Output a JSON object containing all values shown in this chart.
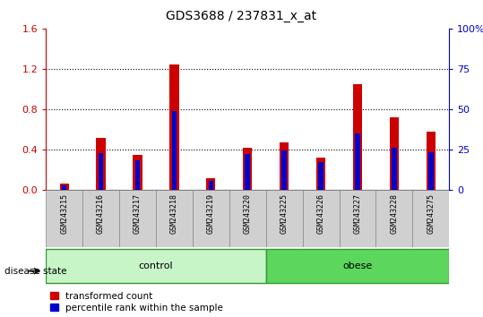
{
  "title": "GDS3688 / 237831_x_at",
  "samples": [
    "GSM243215",
    "GSM243216",
    "GSM243217",
    "GSM243218",
    "GSM243219",
    "GSM243220",
    "GSM243225",
    "GSM243226",
    "GSM243227",
    "GSM243228",
    "GSM243275"
  ],
  "transformed_count": [
    0.07,
    0.52,
    0.35,
    1.24,
    0.12,
    0.42,
    0.47,
    0.32,
    1.05,
    0.72,
    0.58
  ],
  "percentile_rank_scaled": [
    0.048,
    0.37,
    0.3,
    0.78,
    0.09,
    0.36,
    0.39,
    0.28,
    0.56,
    0.42,
    0.38
  ],
  "red_color": "#cc0000",
  "blue_color": "#0000cc",
  "bar_width": 0.25,
  "ylim_left": [
    0,
    1.6
  ],
  "ylim_right": [
    0,
    100
  ],
  "yticks_left": [
    0,
    0.4,
    0.8,
    1.2,
    1.6
  ],
  "yticks_right": [
    0,
    25,
    50,
    75,
    100
  ],
  "control_color": "#c8f5c8",
  "obese_color": "#5cd65c",
  "group_edge_color": "#339933",
  "disease_state_label": "disease state",
  "legend_labels": [
    "transformed count",
    "percentile rank within the sample"
  ],
  "bg_color": "#ffffff",
  "plot_bg_color": "#ffffff",
  "sample_box_color": "#d0d0d0",
  "sample_box_edge": "#888888",
  "n_control": 6,
  "n_obese": 5
}
